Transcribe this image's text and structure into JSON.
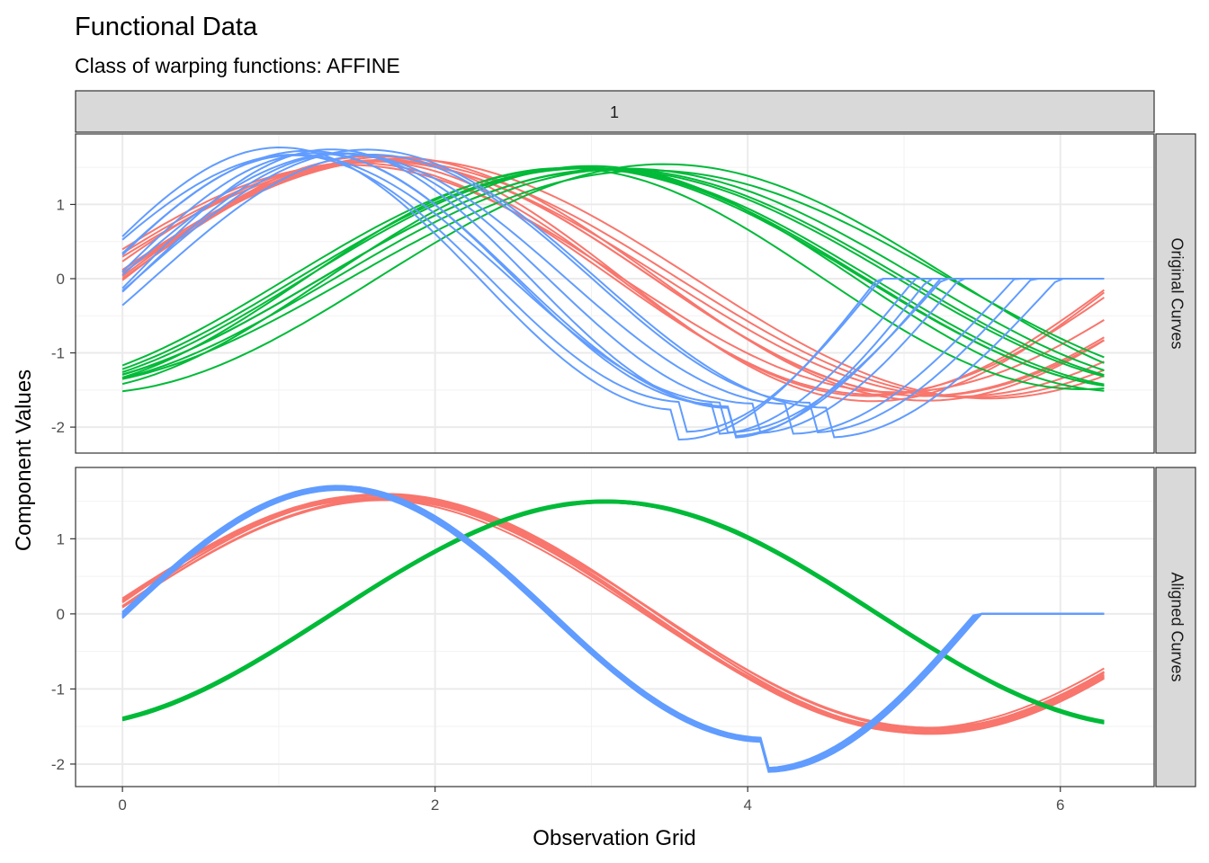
{
  "chart_data": {
    "type": "line",
    "title": "Functional Data",
    "subtitle": "Class of warping functions: AFFINE",
    "xlabel": "Observation Grid",
    "ylabel": "Component Values",
    "xlim": [
      -0.3,
      6.6
    ],
    "x_ticks": [
      "0",
      "2",
      "4",
      "6"
    ],
    "y_ticks": [
      "1",
      "0",
      "-1",
      "-2"
    ],
    "grid": true,
    "legend": "none",
    "column_strip": "1",
    "panels": [
      {
        "strip": "Original Curves",
        "ylim": [
          -2.35,
          1.95
        ],
        "groups": [
          {
            "color": "#F8766D",
            "kind": "sin_shift",
            "shift": 0.0,
            "amp": 1.6,
            "count": 10,
            "spread_shift": [
              -0.15,
              0.35
            ],
            "spread_amp": [
              -0.08,
              0.06
            ]
          },
          {
            "color": "#00BA38",
            "kind": "sin_shift",
            "shift": -1.5,
            "amp": 1.5,
            "count": 10,
            "spread_shift": [
              -0.2,
              0.4
            ],
            "spread_amp": [
              -0.05,
              0.05
            ]
          },
          {
            "color": "#619CFF",
            "kind": "sin_shift",
            "shift": 0.4,
            "amp": 1.7,
            "count": 10,
            "spread_shift": [
              -0.2,
              0.3
            ],
            "spread_amp": [
              -0.08,
              0.08
            ]
          }
        ]
      },
      {
        "strip": "Aligned Curves",
        "ylim": [
          -2.3,
          1.95
        ],
        "groups": [
          {
            "color": "#F8766D",
            "kind": "sin_shift",
            "shift": 0.0,
            "amp": 1.55,
            "count": 10,
            "spread_shift": [
              -0.05,
              0.05
            ],
            "spread_amp": [
              -0.05,
              0.05
            ]
          },
          {
            "color": "#00BA38",
            "kind": "sin_shift",
            "shift": -1.45,
            "amp": 1.5,
            "count": 10,
            "spread_shift": [
              -0.02,
              0.02
            ],
            "spread_amp": [
              -0.02,
              0.02
            ]
          },
          {
            "color": "#619CFF",
            "kind": "sin_shift",
            "shift": 0.45,
            "amp": 1.68,
            "count": 10,
            "spread_shift": [
              -0.03,
              0.03
            ],
            "spread_amp": [
              -0.03,
              0.03
            ]
          }
        ]
      }
    ]
  }
}
